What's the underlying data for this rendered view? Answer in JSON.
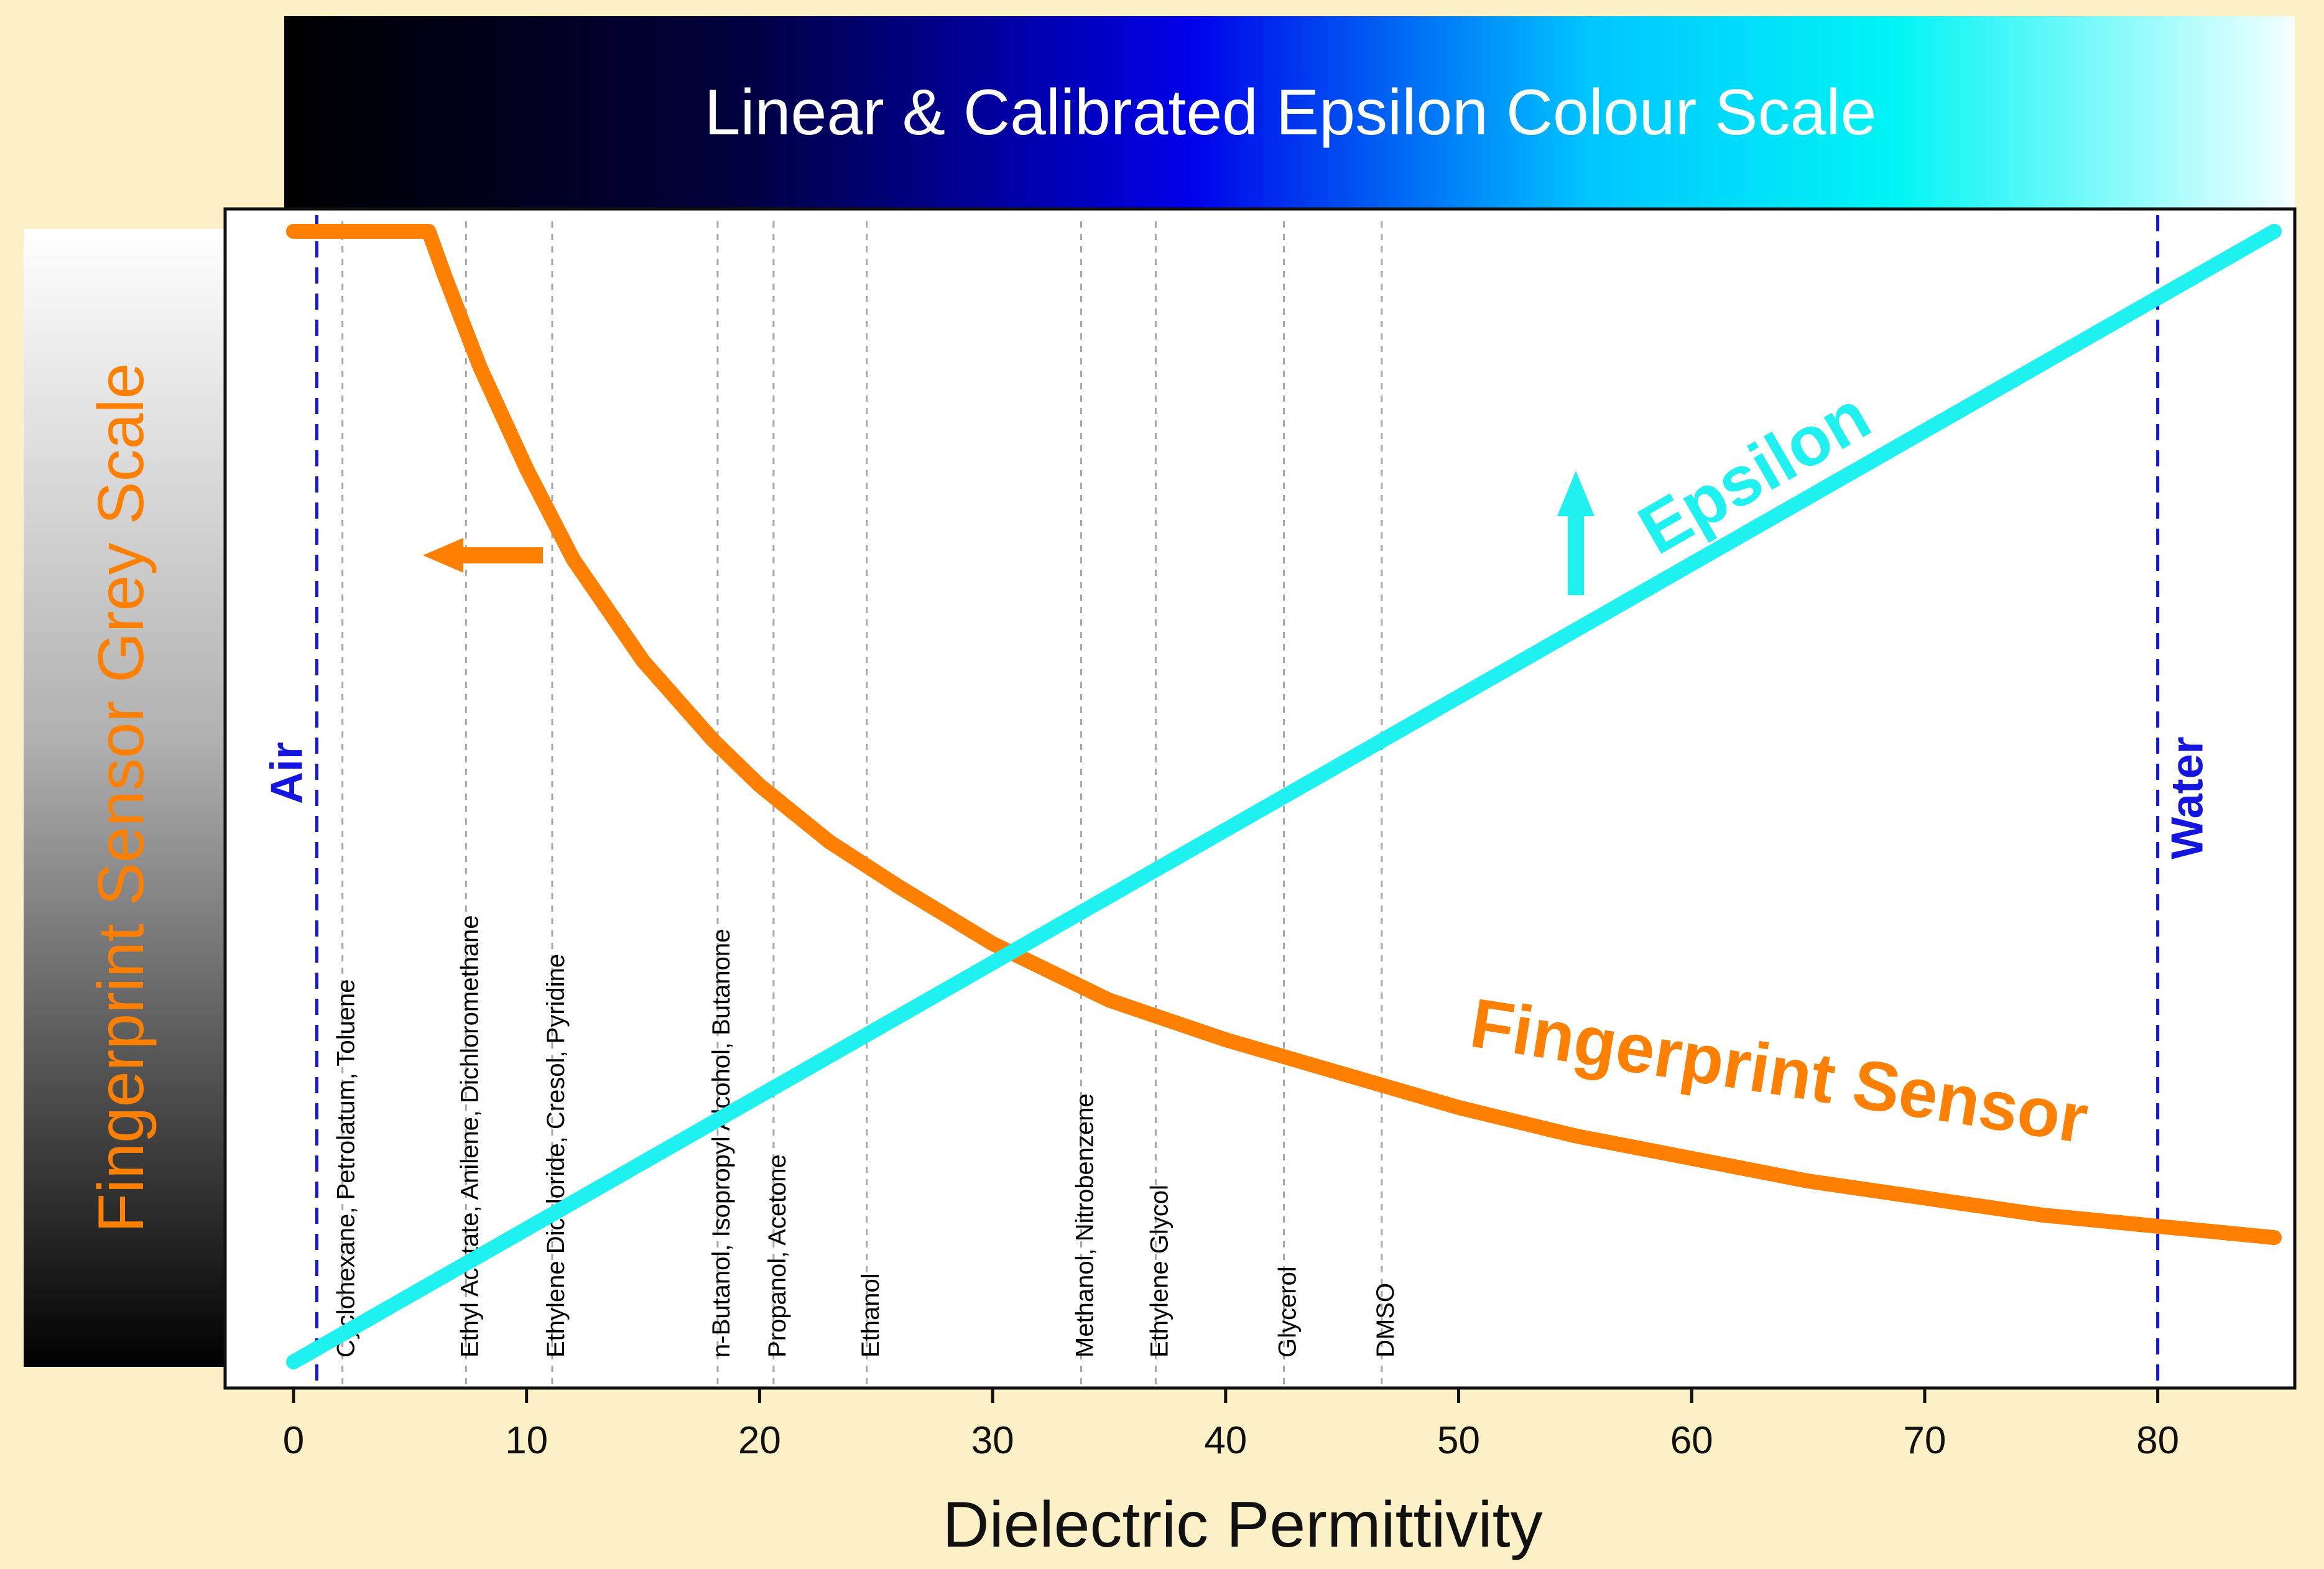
{
  "colour_scale_title": "Linear & Calibrated Epsilon Colour Scale",
  "grey_scale_title": {
    "part1": "Fingerprint Sensor",
    "part2": " Grey Scale"
  },
  "colors": {
    "background": "#fcf0c6",
    "orange": "#ff7f00",
    "cyan": "#1ff0f0",
    "blue_dashed": "#1515e0",
    "guide_grey": "#a8a8a8"
  },
  "chart_data": {
    "type": "line",
    "xlabel": "Dielectric Permittivity",
    "ylabel": "",
    "xlim": [
      -3,
      87
    ],
    "xticks": [
      0,
      10,
      20,
      30,
      40,
      50,
      60,
      70,
      80
    ],
    "grid": false,
    "series": [
      {
        "name": "Fingerprint Sensor",
        "color": "#ff7f00",
        "x": [
          0,
          5.8,
          6.5,
          8,
          10,
          12,
          15,
          18,
          20,
          23,
          26,
          30,
          35,
          40,
          45,
          50,
          55,
          60,
          65,
          70,
          75,
          80,
          85
        ],
        "y": [
          1.0,
          1.0,
          0.96,
          0.88,
          0.79,
          0.71,
          0.62,
          0.55,
          0.51,
          0.46,
          0.42,
          0.37,
          0.32,
          0.285,
          0.255,
          0.225,
          0.2,
          0.18,
          0.16,
          0.145,
          0.13,
          0.12,
          0.11
        ]
      },
      {
        "name": "Epsilon",
        "color": "#1ff0f0",
        "x": [
          0,
          85
        ],
        "y": [
          0,
          1
        ]
      }
    ],
    "reference_lines": [
      {
        "label": "Air",
        "x": 1
      },
      {
        "label": "Water",
        "x": 80
      }
    ],
    "solvent_markers": [
      {
        "label": "Cyclohexane, Petrolatum, Toluene",
        "x": 2.1
      },
      {
        "label": "Ethyl Acetate, Anilene, Dichloromethane",
        "x": 7.4
      },
      {
        "label": "Ethylene Dichloride, Cresol, Pyridine",
        "x": 11.1
      },
      {
        "label": "n-Butanol, Isopropyl Alcohol, Butanone",
        "x": 18.2
      },
      {
        "label": "Propanol, Acetone",
        "x": 20.6
      },
      {
        "label": "Ethanol",
        "x": 24.6
      },
      {
        "label": "Methanol, Nitrobenzene",
        "x": 33.8
      },
      {
        "label": "Ethylene Glycol",
        "x": 37
      },
      {
        "label": "Glycerol",
        "x": 42.5
      },
      {
        "label": "DMSO",
        "x": 46.7
      }
    ],
    "annotations": {
      "epsilon_label": "Epsilon",
      "fingerprint_label": "Fingerprint Sensor"
    }
  }
}
